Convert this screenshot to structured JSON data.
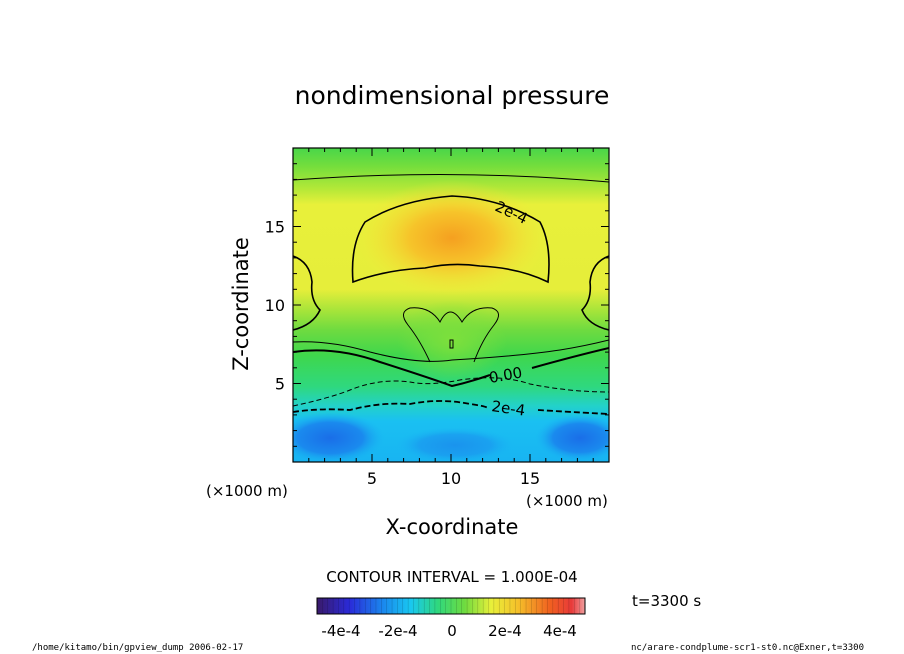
{
  "chart_data": {
    "type": "heatmap",
    "title": "nondimensional pressure",
    "xlabel": "X-coordinate",
    "ylabel": "Z-coordinate",
    "x_unit_left": "(×1000 m)",
    "x_unit_right": "(×1000 m)",
    "xlim": [
      0,
      20
    ],
    "ylim": [
      0,
      20
    ],
    "xticks": [
      "5",
      "10",
      "15"
    ],
    "xtick_values": [
      5,
      10,
      15
    ],
    "yticks": [
      "5",
      "10",
      "15"
    ],
    "ytick_values": [
      5,
      10,
      15
    ],
    "contour_labels": [
      "2e-4",
      "0.00",
      "2e-4"
    ],
    "contour_interval": "CONTOUR INTERVAL = 1.000E-04",
    "colorbar_labels": [
      "-4e-4",
      "-2e-4",
      "0",
      "2e-4",
      "4e-4"
    ],
    "colorbar_range": [
      -0.0005,
      0.0005
    ],
    "time_label": "t=3300 s",
    "colors": {
      "deep_blue": "#1e6fe8",
      "cyan": "#19c8f0",
      "green": "#3fd94a",
      "yellow": "#f0f03a",
      "orange": "#f59a1c"
    }
  },
  "footer": {
    "left": "/home/kitamo/bin/gpview_dump  2006-02-17",
    "right": "nc/arare-condplume-scr1-st0.nc@Exner,t=3300"
  }
}
